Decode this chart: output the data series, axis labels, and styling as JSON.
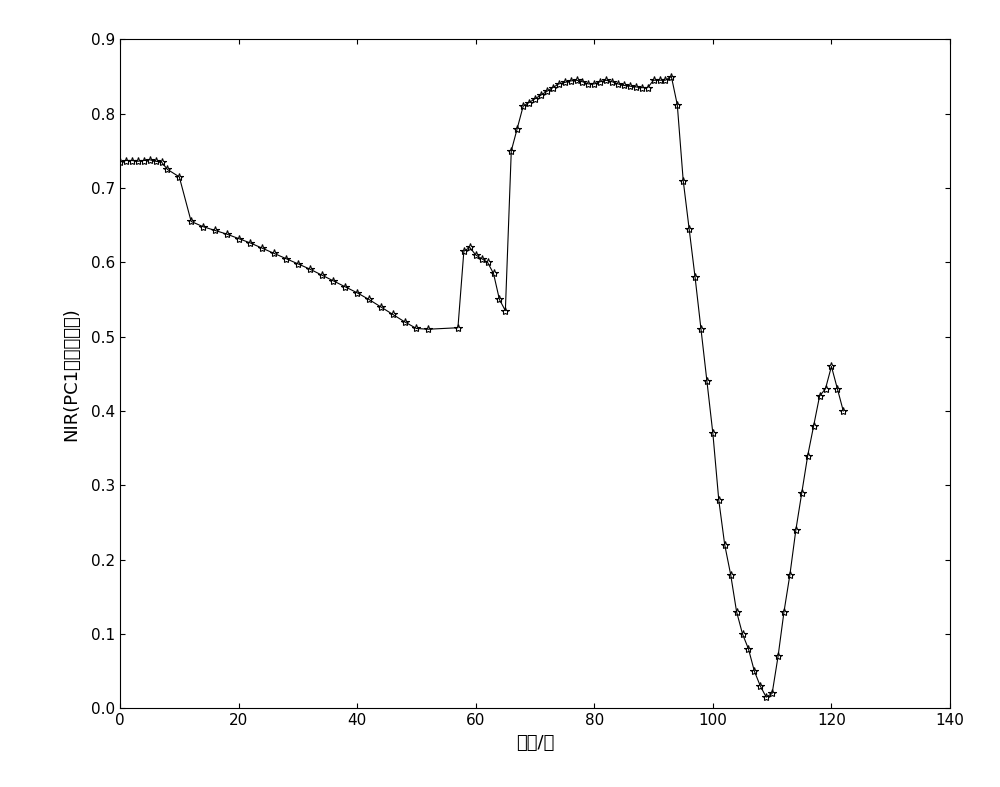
{
  "x": [
    0,
    1,
    2,
    3,
    4,
    5,
    6,
    7,
    8,
    10,
    12,
    14,
    16,
    18,
    20,
    22,
    24,
    26,
    28,
    30,
    32,
    34,
    36,
    38,
    40,
    42,
    44,
    46,
    48,
    50,
    52,
    57,
    58,
    59,
    60,
    61,
    62,
    63,
    64,
    65,
    66,
    67,
    68,
    69,
    70,
    71,
    72,
    73,
    74,
    75,
    76,
    77,
    78,
    79,
    80,
    81,
    82,
    83,
    84,
    85,
    86,
    87,
    88,
    89,
    90,
    91,
    92,
    93,
    94,
    95,
    96,
    97,
    98,
    99,
    100,
    101,
    102,
    103,
    104,
    105,
    106,
    107,
    108,
    109,
    110,
    111,
    112,
    113,
    114,
    115,
    116,
    117,
    118,
    119,
    120,
    121,
    122
  ],
  "y": [
    0.735,
    0.737,
    0.737,
    0.736,
    0.737,
    0.738,
    0.736,
    0.735,
    0.725,
    0.715,
    0.655,
    0.648,
    0.643,
    0.638,
    0.632,
    0.626,
    0.619,
    0.612,
    0.605,
    0.598,
    0.591,
    0.583,
    0.575,
    0.567,
    0.559,
    0.55,
    0.54,
    0.53,
    0.52,
    0.511,
    0.51,
    0.512,
    0.615,
    0.62,
    0.61,
    0.605,
    0.6,
    0.585,
    0.55,
    0.535,
    0.75,
    0.78,
    0.81,
    0.815,
    0.82,
    0.825,
    0.83,
    0.835,
    0.84,
    0.842,
    0.844,
    0.845,
    0.843,
    0.84,
    0.84,
    0.843,
    0.845,
    0.843,
    0.84,
    0.838,
    0.837,
    0.836,
    0.835,
    0.835,
    0.845,
    0.845,
    0.845,
    0.85,
    0.812,
    0.71,
    0.645,
    0.58,
    0.51,
    0.44,
    0.37,
    0.28,
    0.22,
    0.18,
    0.13,
    0.1,
    0.08,
    0.05,
    0.03,
    0.015,
    0.02,
    0.07,
    0.13,
    0.18,
    0.24,
    0.29,
    0.34,
    0.38,
    0.42,
    0.43,
    0.46,
    0.43,
    0.4
  ],
  "xlim": [
    0,
    140
  ],
  "ylim": [
    0,
    0.9
  ],
  "xticks": [
    0,
    20,
    40,
    60,
    80,
    100,
    120,
    140
  ],
  "yticks": [
    0.0,
    0.1,
    0.2,
    0.3,
    0.4,
    0.5,
    0.6,
    0.7,
    0.8,
    0.9
  ],
  "xlabel": "时间/分",
  "ylabel": "NIR(PC1得分百分比)",
  "line_color": "#000000",
  "marker": "*",
  "markersize": 6,
  "linewidth": 0.8,
  "bg_color": "#ffffff",
  "figsize": [
    10.0,
    7.87
  ],
  "dpi": 100
}
